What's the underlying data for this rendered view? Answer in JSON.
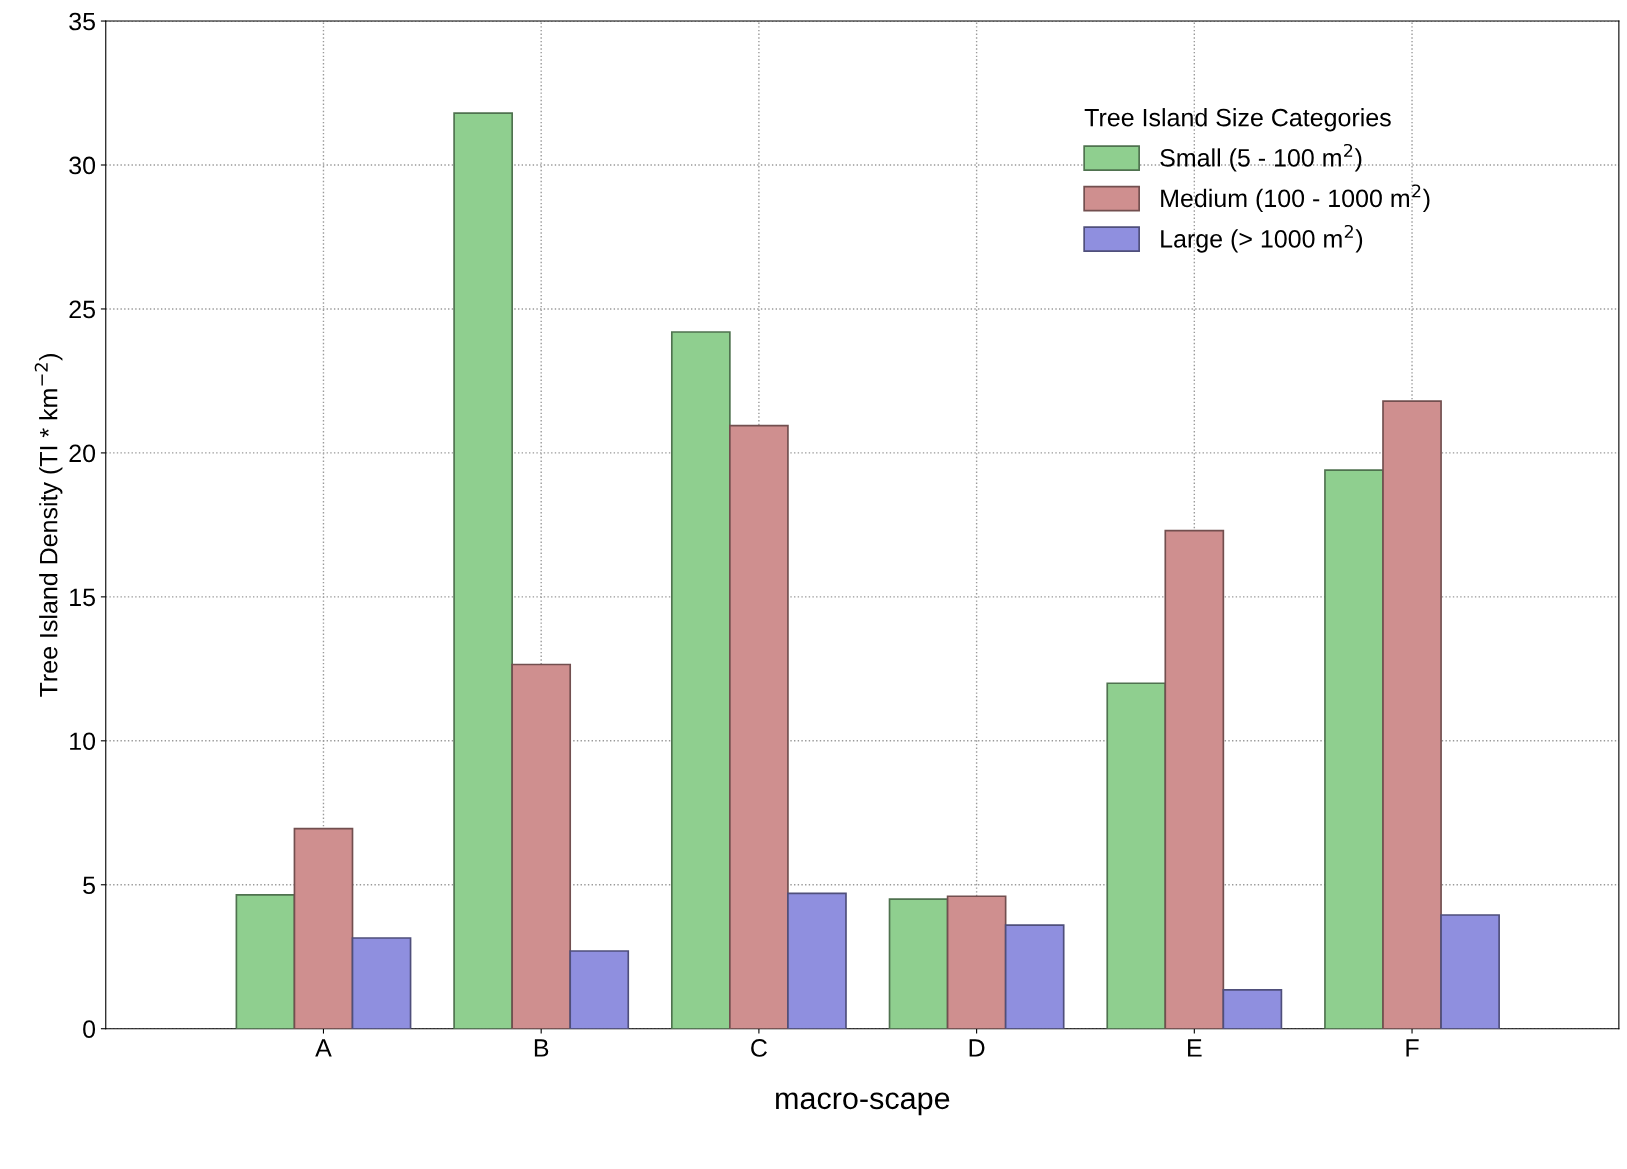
{
  "chart_data": {
    "type": "bar",
    "xlabel": "macro-scape",
    "ylabel": "Tree Island Density (TI * km$^{−2}$)",
    "legend_title": "Tree Island Size Categories",
    "categories": [
      "A",
      "B",
      "C",
      "D",
      "E",
      "F"
    ],
    "series": [
      {
        "name": "Small (5 - 100 m$^{2}$)",
        "color": "#8fcf8f",
        "values": [
          4.65,
          31.8,
          24.2,
          4.5,
          12.0,
          19.4
        ]
      },
      {
        "name": "Medium (100 - 1000 m$^{2}$)",
        "color": "#cf8f8f",
        "values": [
          6.95,
          12.65,
          20.95,
          4.6,
          17.3,
          21.8
        ]
      },
      {
        "name": "Large (> 1000 m$^{2}$)",
        "color": "#8f8fdf",
        "values": [
          3.15,
          2.7,
          4.7,
          3.6,
          1.35,
          3.95
        ]
      }
    ],
    "ylim": [
      0,
      35
    ],
    "yticks": [
      0,
      5,
      10,
      15,
      20,
      25,
      30,
      35
    ],
    "grid": true,
    "legend": "top right"
  }
}
